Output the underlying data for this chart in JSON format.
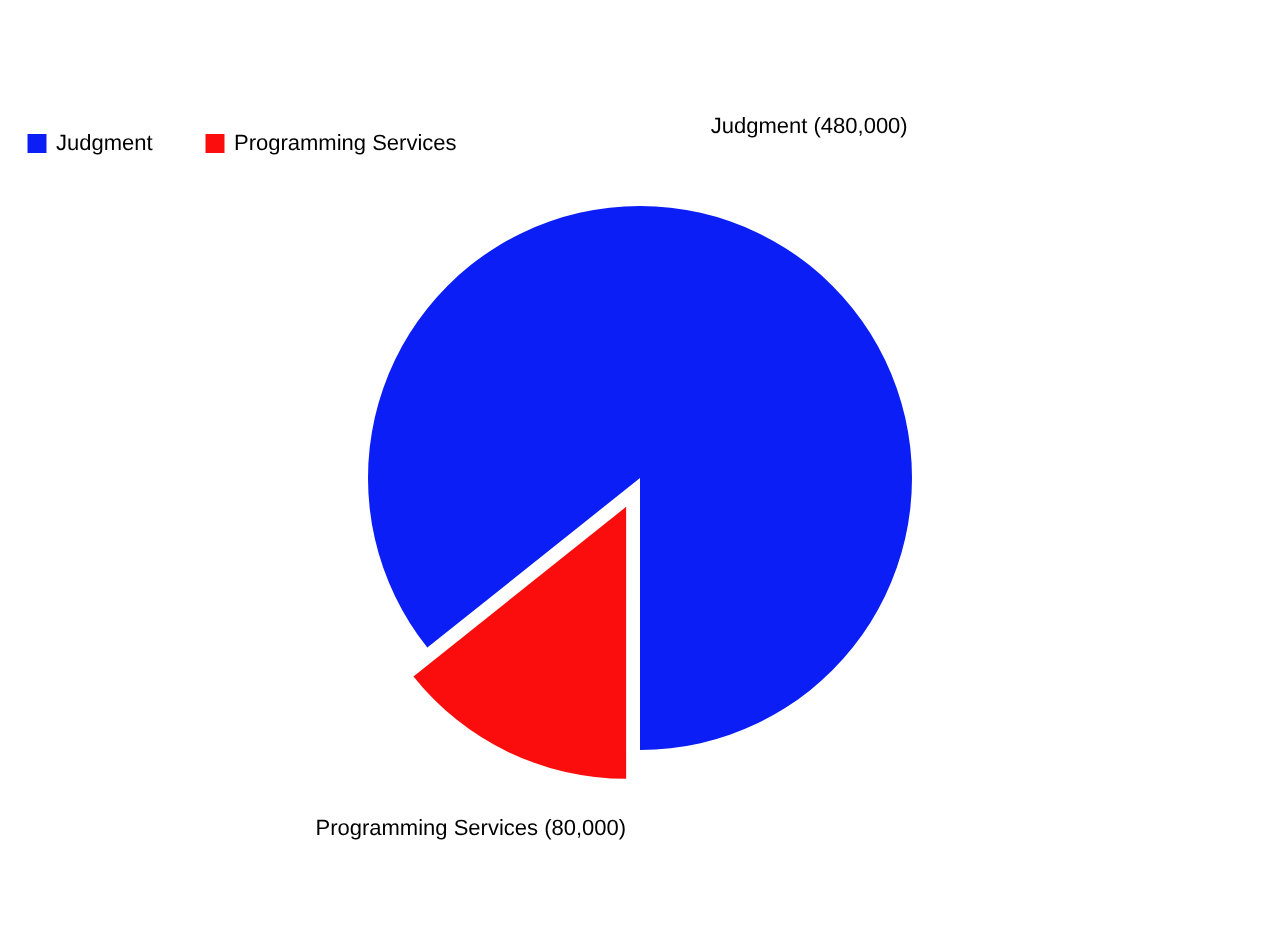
{
  "chart_data": {
    "type": "pie",
    "categories": [
      "Judgment",
      "Programming Services"
    ],
    "values": [
      480000,
      80000
    ],
    "value_labels": [
      "(480,000)",
      "(80,000)"
    ],
    "colors": [
      "#0a1ef5",
      "#fc0d0d"
    ],
    "legend": "top left"
  }
}
